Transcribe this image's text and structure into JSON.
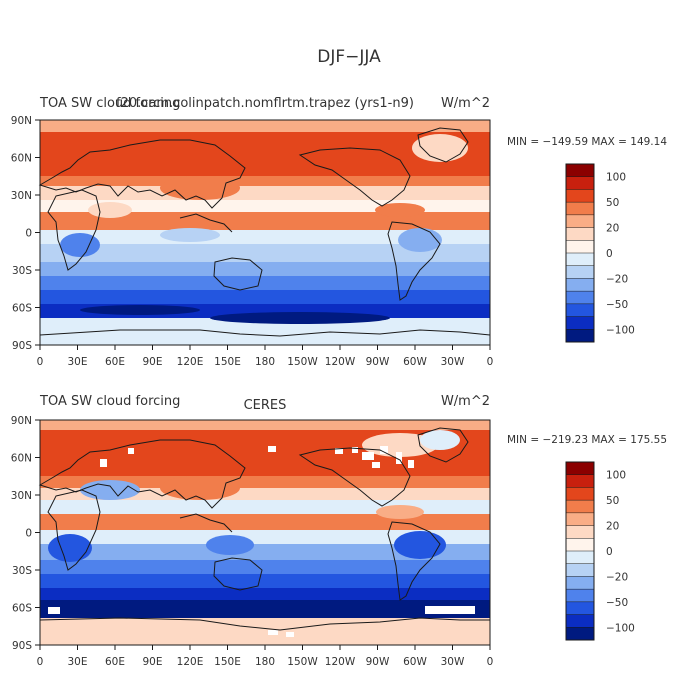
{
  "figure_title": "DJF−JJA",
  "panels": [
    {
      "title_left": "TOA SW cloud forcing",
      "title_center": "f20.cam.colinpatch.nomflrtm.trapez (yrs1-n9)",
      "title_right": "W/m^2",
      "stats": "MIN = −149.59  MAX = 149.14"
    },
    {
      "title_left": "TOA SW cloud forcing",
      "title_center": "CERES",
      "title_right": "W/m^2",
      "stats": "MIN = −219.23  MAX = 175.55"
    }
  ],
  "axes": {
    "x_ticks": [
      "0",
      "30E",
      "60E",
      "90E",
      "120E",
      "150E",
      "180",
      "150W",
      "120W",
      "90W",
      "60W",
      "30W",
      "0"
    ],
    "y_ticks": [
      "90N",
      "60N",
      "30N",
      "0",
      "30S",
      "60S",
      "90S"
    ]
  },
  "colorbar": {
    "labels": [
      "100",
      "50",
      "20",
      "0",
      "−20",
      "−50",
      "−100"
    ],
    "colors": [
      "#8b0000",
      "#c8200e",
      "#e3461c",
      "#f17d4b",
      "#f9ad86",
      "#fdd9c4",
      "#fff4ec",
      "#dfeefa",
      "#b7d2f4",
      "#85aef0",
      "#4f82ec",
      "#2356e0",
      "#0b2dc2",
      "#001a80"
    ]
  },
  "colors": {
    "text": "#333333",
    "coast": "#1a1a1a",
    "missing": "#ffffff"
  }
}
